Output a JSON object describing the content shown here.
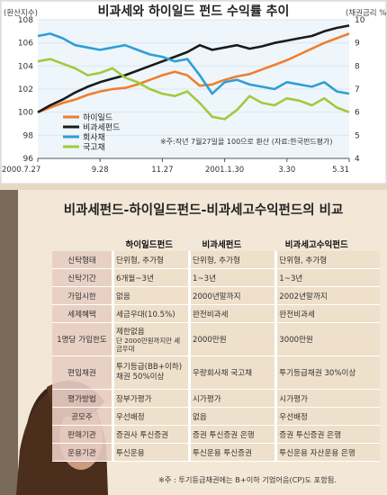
{
  "chart_data": {
    "type": "line",
    "title": "비과세와 하이일드 펀드 수익률 추이",
    "left_axis_label": "(환산지수)",
    "right_axis_label": "(채권금리 %)",
    "y_left_ticks": [
      96,
      98,
      100,
      102,
      104,
      106,
      108
    ],
    "y_right_ticks": [
      4,
      5,
      6,
      7,
      8,
      9,
      10
    ],
    "ylim_left": [
      96,
      108
    ],
    "ylim_right": [
      4,
      10
    ],
    "x_tick_labels": [
      "2000.7.27",
      "9.28",
      "11.27",
      "2001.1.30",
      "3.30",
      "5.31"
    ],
    "annotation": "※주:작년 7월27일을 100으로 환산 (자료:한국펀드평가)",
    "legend_position": "lower-left",
    "series": [
      {
        "name": "하이일드",
        "axis": "left",
        "color": "#ee7f2d",
        "x": [
          0,
          4,
          8,
          12,
          16,
          20,
          24,
          28,
          32,
          36,
          40,
          44,
          48,
          52,
          56,
          60,
          64,
          68,
          72,
          76,
          80,
          84,
          88,
          92,
          96,
          100
        ],
        "values": [
          100,
          100.4,
          100.8,
          101.1,
          101.5,
          101.8,
          102,
          102.1,
          102.4,
          102.8,
          103.2,
          103.5,
          103.2,
          102.3,
          102.4,
          102.8,
          103.1,
          103.3,
          103.7,
          104.1,
          104.5,
          105,
          105.5,
          106,
          106.4,
          106.8
        ]
      },
      {
        "name": "비과세펀드",
        "axis": "left",
        "color": "#1a1a1a",
        "x": [
          0,
          4,
          8,
          12,
          16,
          20,
          24,
          28,
          32,
          36,
          40,
          44,
          48,
          52,
          56,
          60,
          64,
          68,
          72,
          76,
          80,
          84,
          88,
          92,
          96,
          100
        ],
        "values": [
          100,
          100.6,
          101.1,
          101.7,
          102.2,
          102.6,
          102.9,
          103.2,
          103.6,
          104,
          104.4,
          104.8,
          105.2,
          105.8,
          105.4,
          105.6,
          105.8,
          105.5,
          105.7,
          106,
          106.2,
          106.4,
          106.6,
          107,
          107.3,
          107.5
        ]
      },
      {
        "name": "회사채",
        "axis": "right",
        "color": "#2f9ed6",
        "x": [
          0,
          4,
          8,
          12,
          16,
          20,
          24,
          28,
          32,
          36,
          40,
          44,
          48,
          52,
          56,
          60,
          64,
          68,
          72,
          76,
          80,
          84,
          88,
          92,
          96,
          100
        ],
        "values": [
          9.3,
          9.4,
          9.2,
          8.9,
          8.8,
          8.7,
          8.8,
          8.9,
          8.7,
          8.5,
          8.4,
          8.2,
          8.3,
          7.6,
          6.8,
          7.3,
          7.4,
          7.2,
          7.1,
          7,
          7.3,
          7.2,
          7.1,
          7.3,
          6.9,
          6.8
        ]
      },
      {
        "name": "국고채",
        "axis": "right",
        "color": "#a3c93a",
        "x": [
          0,
          4,
          8,
          12,
          16,
          20,
          24,
          28,
          32,
          36,
          40,
          44,
          48,
          52,
          56,
          60,
          64,
          68,
          72,
          76,
          80,
          84,
          88,
          92,
          96,
          100
        ],
        "values": [
          8.2,
          8.3,
          8.1,
          7.9,
          7.6,
          7.7,
          7.9,
          7.5,
          7.3,
          7,
          6.8,
          6.7,
          6.9,
          6.4,
          5.8,
          5.7,
          6.1,
          6.7,
          6.4,
          6.3,
          6.6,
          6.5,
          6.3,
          6.6,
          6.2,
          6
        ]
      }
    ]
  },
  "table": {
    "title": "비과세펀드-하이일드펀드-비과세고수익펀드의 비교",
    "headers": [
      "하이일드펀드",
      "비과세펀드",
      "비과세고수익펀드"
    ],
    "rows": [
      {
        "label": "신탁형태",
        "cells": [
          "단위형, 추가형",
          "단위형, 추가형",
          "단위형, 추가형"
        ]
      },
      {
        "label": "신탁기간",
        "cells": [
          "6개월~3년",
          "1~3년",
          "1~3년"
        ]
      },
      {
        "label": "가입시한",
        "cells": [
          "없음",
          "2000년말까지",
          "2002년말까지"
        ]
      },
      {
        "label": "세제혜택",
        "cells": [
          "세금우대(10.5%)",
          "완전비과세",
          "완전비과세"
        ]
      },
      {
        "label": "1명당 가입한도",
        "cells": [
          "제한없음",
          "2000만원",
          "3000만원"
        ],
        "note": "단 2000만원까지만 세금우대"
      },
      {
        "label": "편입채권",
        "cells": [
          "투기등급(BB+이하) 채권 50%이상",
          "우량회사채  국고채",
          "투기등급채권 30%이상"
        ]
      },
      {
        "label": "평가방법",
        "cells": [
          "장부가평가",
          "시가평가",
          "시가평가"
        ]
      },
      {
        "label": "공모주",
        "cells": [
          "우선배정",
          "없음",
          "우선배정"
        ]
      },
      {
        "label": "판매기관",
        "cells": [
          "증권사 투신증권",
          "증권 투신증권 은행",
          "증권 투신증권 은행"
        ]
      },
      {
        "label": "운용기관",
        "cells": [
          "투신운용",
          "투신운용 투신증권",
          "투신운용 자산운용 은행"
        ]
      }
    ],
    "footnote": "※주 : 투기등급채권에는 B+이하 기업어음(CP)도 포함됨."
  }
}
